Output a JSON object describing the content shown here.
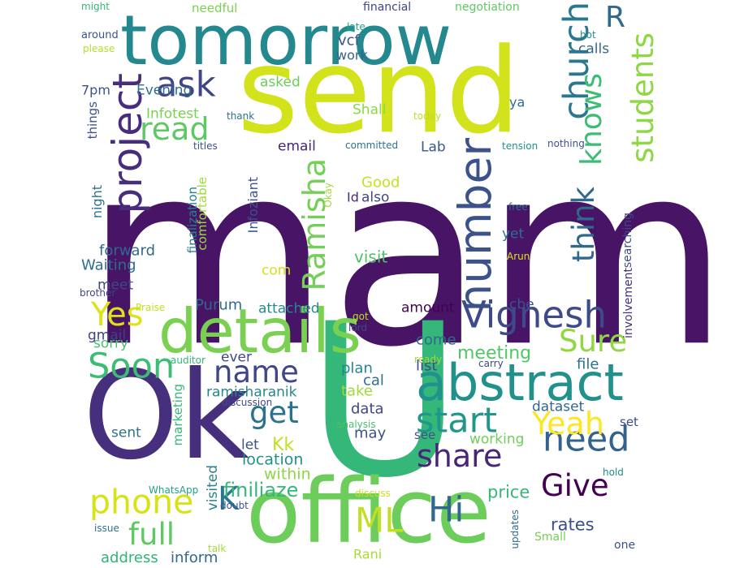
{
  "words": [
    {
      "text": "mam",
      "color": "#471466"
    },
    {
      "text": "U",
      "color": "#35b779"
    },
    {
      "text": "send",
      "color": "#d2e21b"
    },
    {
      "text": "tomorrow",
      "color": "#23898e"
    },
    {
      "text": "Ok",
      "color": "#46307e"
    },
    {
      "text": "office",
      "color": "#6ccd5a"
    },
    {
      "text": "details",
      "color": "#7ad151"
    },
    {
      "text": "abstract",
      "color": "#21918c"
    },
    {
      "text": "number",
      "color": "#3b528b"
    },
    {
      "text": "project",
      "color": "#472d7b"
    },
    {
      "text": "Vignesh",
      "color": "#3e4a89"
    },
    {
      "text": "ask",
      "color": "#414487"
    },
    {
      "text": "church",
      "color": "#2a788e"
    },
    {
      "text": "students",
      "color": "#8fd744"
    },
    {
      "text": "knows",
      "color": "#3dbc74"
    },
    {
      "text": "R",
      "color": "#31688e"
    },
    {
      "text": "read",
      "color": "#5ec962"
    },
    {
      "text": "Ramisha",
      "color": "#73d056"
    },
    {
      "text": "think",
      "color": "#31688e"
    },
    {
      "text": "need",
      "color": "#33628d"
    },
    {
      "text": "name",
      "color": "#3f4788"
    },
    {
      "text": "Soon",
      "color": "#3dbc74"
    },
    {
      "text": "Yes",
      "color": "#dde318"
    },
    {
      "text": "Sure",
      "color": "#90d743"
    },
    {
      "text": "start",
      "color": "#1f988b"
    },
    {
      "text": "get",
      "color": "#2c728e"
    },
    {
      "text": "share",
      "color": "#482576"
    },
    {
      "text": "Yeah",
      "color": "#fde725"
    },
    {
      "text": "phone",
      "color": "#d8e219"
    },
    {
      "text": "Give",
      "color": "#440154"
    },
    {
      "text": "full",
      "color": "#5ec962"
    },
    {
      "text": "Hi",
      "color": "#31688e"
    },
    {
      "text": "ML",
      "color": "#c2df23"
    },
    {
      "text": "K",
      "color": "#2a788e"
    },
    {
      "text": "finiliaze",
      "color": "#35b779"
    },
    {
      "text": "meeting",
      "color": "#52c569"
    },
    {
      "text": "Kk",
      "color": "#c0df25"
    },
    {
      "text": "price",
      "color": "#37b878"
    },
    {
      "text": "rates",
      "color": "#3c508b"
    },
    {
      "text": "location",
      "color": "#20928c"
    },
    {
      "text": "within",
      "color": "#8ed645"
    },
    {
      "text": "dataset",
      "color": "#31688e"
    },
    {
      "text": "working",
      "color": "#6ece58"
    },
    {
      "text": "data",
      "color": "#3f4788"
    },
    {
      "text": "may",
      "color": "#3b528b"
    },
    {
      "text": "take",
      "color": "#9fda3a"
    },
    {
      "text": "plan",
      "color": "#24868e"
    },
    {
      "text": "cal",
      "color": "#2e6f8e"
    },
    {
      "text": "list",
      "color": "#3e4a89"
    },
    {
      "text": "file",
      "color": "#2c718e"
    },
    {
      "text": "come",
      "color": "#31688e"
    },
    {
      "text": "amount",
      "color": "#440154"
    },
    {
      "text": "cbe",
      "color": "#3b528b"
    },
    {
      "text": "ramisharanik",
      "color": "#24878e"
    },
    {
      "text": "ever",
      "color": "#3f4889"
    },
    {
      "text": "sent",
      "color": "#2d708e"
    },
    {
      "text": "let",
      "color": "#3b528b"
    },
    {
      "text": "marketing",
      "color": "#35b779"
    },
    {
      "text": "visited",
      "color": "#26828e"
    },
    {
      "text": "address",
      "color": "#2fb47c"
    },
    {
      "text": "inform",
      "color": "#31688e"
    },
    {
      "text": "Rani",
      "color": "#a8db34"
    },
    {
      "text": "Small",
      "color": "#75d054"
    },
    {
      "text": "see",
      "color": "#3b528b"
    },
    {
      "text": "set",
      "color": "#3e4a89"
    },
    {
      "text": "sorry",
      "color": "#4ac16d"
    },
    {
      "text": "gmail",
      "color": "#424086"
    },
    {
      "text": "Purum",
      "color": "#31688e"
    },
    {
      "text": "attached",
      "color": "#23898e"
    },
    {
      "text": "visit",
      "color": "#4ec36b"
    },
    {
      "text": "com",
      "color": "#d2e21b"
    },
    {
      "text": "Infoziant",
      "color": "#3b528b"
    },
    {
      "text": "yet",
      "color": "#2e6f8e"
    },
    {
      "text": "searching",
      "color": "#3e4989"
    },
    {
      "text": "involvement",
      "color": "#46307e"
    },
    {
      "text": "finalization",
      "color": "#26828e"
    },
    {
      "text": "comfortable",
      "color": "#9fda3a"
    },
    {
      "text": "forward",
      "color": "#31688e"
    },
    {
      "text": "Waiting",
      "color": "#2e6e8e"
    },
    {
      "text": "meet",
      "color": "#3f4788"
    },
    {
      "text": "night",
      "color": "#2c718e"
    },
    {
      "text": "things",
      "color": "#3b528b"
    },
    {
      "text": "email",
      "color": "#482878"
    },
    {
      "text": "Lab",
      "color": "#38598c"
    },
    {
      "text": "Good",
      "color": "#c8e020"
    },
    {
      "text": "Id",
      "color": "#472a7a"
    },
    {
      "text": "also",
      "color": "#414487"
    },
    {
      "text": "Infotest",
      "color": "#7ad151"
    },
    {
      "text": "Shall",
      "color": "#8bd646"
    },
    {
      "text": "asked",
      "color": "#6ccd5a"
    },
    {
      "text": "Evening",
      "color": "#2e6e8e"
    },
    {
      "text": "7pm",
      "color": "#3b528b"
    },
    {
      "text": "work",
      "color": "#33628d"
    },
    {
      "text": "vcf",
      "color": "#3b528b"
    },
    {
      "text": "calls",
      "color": "#31688e"
    },
    {
      "text": "ya",
      "color": "#31688e"
    },
    {
      "text": "needful",
      "color": "#7ad151"
    },
    {
      "text": "financial",
      "color": "#3f4788"
    },
    {
      "text": "negotiation",
      "color": "#5ec962"
    },
    {
      "text": "might",
      "color": "#35b779"
    },
    {
      "text": "around",
      "color": "#3b528b"
    },
    {
      "text": "please",
      "color": "#b5de2b"
    },
    {
      "text": "late",
      "color": "#20a386"
    },
    {
      "text": "hot",
      "color": "#21918c"
    },
    {
      "text": "thank",
      "color": "#2c728e"
    },
    {
      "text": "today",
      "color": "#bddf26"
    },
    {
      "text": "titles",
      "color": "#3b528b"
    },
    {
      "text": "committed",
      "color": "#2c728e"
    },
    {
      "text": "tension",
      "color": "#21918c"
    },
    {
      "text": "nothing",
      "color": "#3b528b"
    },
    {
      "text": "Okay",
      "color": "#a0da39"
    },
    {
      "text": "free",
      "color": "#2c728e"
    },
    {
      "text": "Arun",
      "color": "#dde318"
    },
    {
      "text": "brother",
      "color": "#414487"
    },
    {
      "text": "Praise",
      "color": "#c2df23"
    },
    {
      "text": "lord",
      "color": "#3e4a89"
    },
    {
      "text": "got",
      "color": "#c0df25"
    },
    {
      "text": "auditor",
      "color": "#35b779"
    },
    {
      "text": "ready",
      "color": "#9fda3a"
    },
    {
      "text": "carry",
      "color": "#3f4788"
    },
    {
      "text": "discussion",
      "color": "#3e4a89"
    },
    {
      "text": "analysis",
      "color": "#4ac16d"
    },
    {
      "text": "WhatsApp",
      "color": "#20a386"
    },
    {
      "text": "discuss",
      "color": "#c8e020"
    },
    {
      "text": "doubt",
      "color": "#3b528b"
    },
    {
      "text": "issue",
      "color": "#2c728e"
    },
    {
      "text": "talk",
      "color": "#a0da39"
    },
    {
      "text": "updates",
      "color": "#31688e"
    },
    {
      "text": "hold",
      "color": "#24878e"
    },
    {
      "text": "one",
      "color": "#3b528b"
    }
  ]
}
